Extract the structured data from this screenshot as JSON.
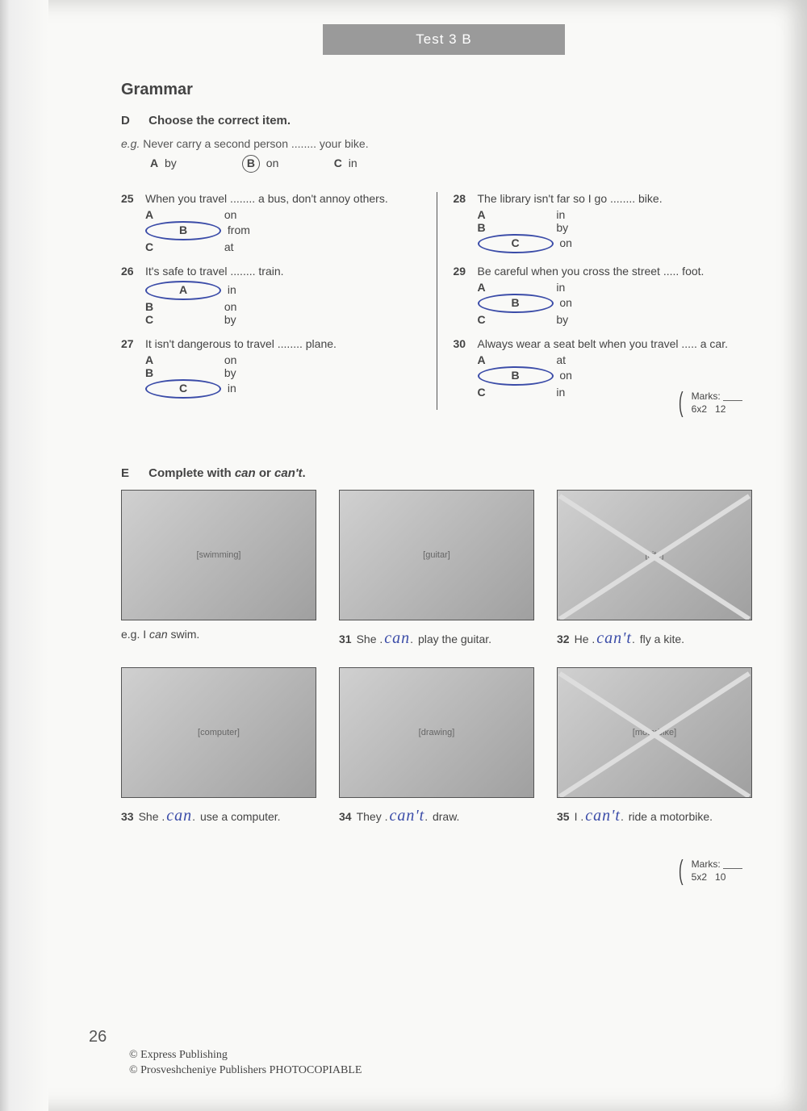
{
  "header": {
    "title": "Test 3 B"
  },
  "section_title": "Grammar",
  "exercise_d": {
    "letter": "D",
    "instruction": "Choose the correct item.",
    "example": {
      "prefix": "e.g.",
      "text": "Never carry a second person ........ your bike.",
      "opts": [
        {
          "letter": "A",
          "word": "by",
          "circled": false
        },
        {
          "letter": "B",
          "word": "on",
          "circled": true,
          "pen": false
        },
        {
          "letter": "C",
          "word": "in",
          "circled": false
        }
      ]
    },
    "left_questions": [
      {
        "num": "25",
        "text": "When you travel ........ a bus, don't annoy others.",
        "opts": [
          {
            "letter": "A",
            "word": "on",
            "circled": false
          },
          {
            "letter": "B",
            "word": "from",
            "circled": true,
            "pen": true
          },
          {
            "letter": "C",
            "word": "at",
            "circled": false
          }
        ]
      },
      {
        "num": "26",
        "text": "It's safe to travel ........ train.",
        "opts": [
          {
            "letter": "A",
            "word": "in",
            "circled": true,
            "pen": true
          },
          {
            "letter": "B",
            "word": "on",
            "circled": false
          },
          {
            "letter": "C",
            "word": "by",
            "circled": false
          }
        ]
      },
      {
        "num": "27",
        "text": "It isn't dangerous to travel ........ plane.",
        "opts": [
          {
            "letter": "A",
            "word": "on",
            "circled": false
          },
          {
            "letter": "B",
            "word": "by",
            "circled": false
          },
          {
            "letter": "C",
            "word": "in",
            "circled": true,
            "pen": true
          }
        ]
      }
    ],
    "right_questions": [
      {
        "num": "28",
        "text": "The library isn't far so I go ........ bike.",
        "opts": [
          {
            "letter": "A",
            "word": "in",
            "circled": false
          },
          {
            "letter": "B",
            "word": "by",
            "circled": false
          },
          {
            "letter": "C",
            "word": "on",
            "circled": true,
            "pen": true
          }
        ]
      },
      {
        "num": "29",
        "text": "Be careful when you cross the street ..... foot.",
        "opts": [
          {
            "letter": "A",
            "word": "in",
            "circled": false
          },
          {
            "letter": "B",
            "word": "on",
            "circled": true,
            "pen": true
          },
          {
            "letter": "C",
            "word": "by",
            "circled": false
          }
        ]
      },
      {
        "num": "30",
        "text": "Always wear a seat belt when you travel ..... a car.",
        "opts": [
          {
            "letter": "A",
            "word": "at",
            "circled": false
          },
          {
            "letter": "B",
            "word": "on",
            "circled": true,
            "pen": true
          },
          {
            "letter": "C",
            "word": "in",
            "circled": false
          }
        ]
      }
    ],
    "marks": {
      "label": "Marks:",
      "formula": "6x2",
      "total": "12"
    }
  },
  "exercise_e": {
    "letter": "E",
    "instruction_pre": "Complete with ",
    "instruction_em1": "can",
    "instruction_mid": " or ",
    "instruction_em2": "can't",
    "instruction_post": ".",
    "row1": [
      {
        "num": "e.g.",
        "text_pre": "I ",
        "em": "can",
        "text_post": " swim.",
        "placeholder": "swimming",
        "crossed": false,
        "handwritten": ""
      },
      {
        "num": "31",
        "text_pre": "She ",
        "text_post": " play the guitar.",
        "placeholder": "guitar",
        "crossed": false,
        "handwritten": "can"
      },
      {
        "num": "32",
        "text_pre": "He ",
        "text_post": " fly a kite.",
        "placeholder": "kite",
        "crossed": true,
        "handwritten": "can't"
      }
    ],
    "row2": [
      {
        "num": "33",
        "text_pre": "She ",
        "text_post": " use a computer.",
        "placeholder": "computer",
        "crossed": false,
        "handwritten": "can"
      },
      {
        "num": "34",
        "text_pre": "They ",
        "text_post": " draw.",
        "placeholder": "drawing",
        "crossed": false,
        "handwritten": "can't"
      },
      {
        "num": "35",
        "text_pre": "I ",
        "text_post": " ride a motorbike.",
        "placeholder": "motorbike",
        "crossed": true,
        "handwritten": "can't"
      }
    ],
    "marks": {
      "label": "Marks:",
      "formula": "5x2",
      "total": "10"
    }
  },
  "footer": {
    "page_number": "26",
    "line1": "© Express Publishing",
    "line2": "© Prosveshcheniye Publishers PHOTOCOPIABLE"
  },
  "colors": {
    "pen_blue": "#3b4ca8",
    "header_gray": "#9a9a9a",
    "text": "#444444",
    "page_bg": "#f9f9f7"
  }
}
